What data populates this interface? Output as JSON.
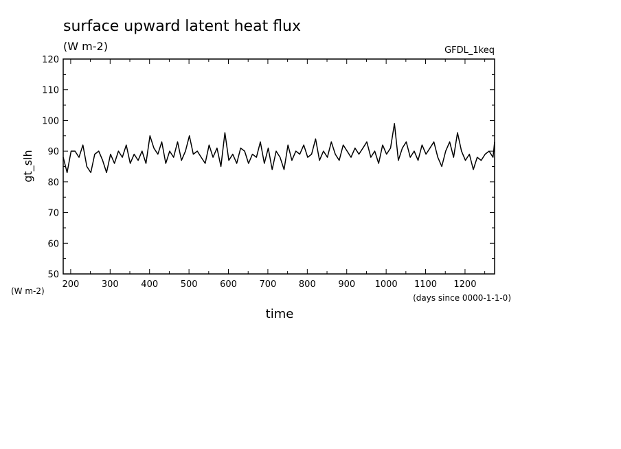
{
  "chart_data": {
    "type": "line",
    "title": "surface upward latent heat flux",
    "subtitle": "(W m-2)",
    "source_label": "GFDL_1keq",
    "xlabel": "time",
    "x_units": "(days since 0000-1-1-0)",
    "ylabel": "gt_slh",
    "y_units": "(W m-2)",
    "xlim": [
      181,
      1275
    ],
    "ylim": [
      50,
      120
    ],
    "x_ticks": [
      200,
      300,
      400,
      500,
      600,
      700,
      800,
      900,
      1000,
      1100,
      1200
    ],
    "y_ticks": [
      50,
      60,
      70,
      80,
      90,
      100,
      110,
      120
    ],
    "grid": false,
    "colors": {
      "line": "#000000",
      "axes": "#000000"
    },
    "series": [
      {
        "x": [
          181,
          191,
          201,
          211,
          221,
          231,
          241,
          251,
          261,
          271,
          281,
          291,
          301,
          311,
          321,
          331,
          341,
          351,
          361,
          371,
          381,
          391,
          401,
          411,
          421,
          431,
          441,
          451,
          461,
          471,
          481,
          491,
          501,
          511,
          521,
          531,
          541,
          551,
          561,
          571,
          581,
          591,
          601,
          611,
          621,
          631,
          641,
          651,
          661,
          671,
          681,
          691,
          701,
          711,
          721,
          731,
          741,
          751,
          761,
          771,
          781,
          791,
          801,
          811,
          821,
          831,
          841,
          851,
          861,
          871,
          881,
          891,
          901,
          911,
          921,
          931,
          941,
          951,
          961,
          971,
          981,
          991,
          1001,
          1011,
          1021,
          1031,
          1041,
          1051,
          1061,
          1071,
          1081,
          1091,
          1101,
          1111,
          1121,
          1131,
          1141,
          1151,
          1161,
          1171,
          1181,
          1191,
          1201,
          1211,
          1221,
          1231,
          1241,
          1251,
          1261,
          1271,
          1275
        ],
        "values": [
          88,
          83,
          90,
          90,
          88,
          92,
          85,
          83,
          89,
          90,
          87,
          83,
          89,
          86,
          90,
          88,
          92,
          86,
          89,
          87,
          90,
          86,
          95,
          91,
          89,
          93,
          86,
          90,
          88,
          93,
          87,
          90,
          95,
          89,
          90,
          88,
          86,
          92,
          88,
          91,
          85,
          96,
          87,
          89,
          86,
          91,
          90,
          86,
          89,
          88,
          93,
          86,
          91,
          84,
          90,
          88,
          84,
          92,
          87,
          90,
          89,
          92,
          88,
          89,
          94,
          87,
          90,
          88,
          93,
          89,
          87,
          92,
          90,
          88,
          91,
          89,
          91,
          93,
          88,
          90,
          86,
          92,
          89,
          91,
          99,
          87,
          91,
          93,
          88,
          90,
          87,
          92,
          89,
          91,
          93,
          88,
          85,
          90,
          93,
          88,
          96,
          90,
          87,
          89,
          84,
          88,
          87,
          89,
          90,
          88,
          93
        ]
      }
    ]
  }
}
